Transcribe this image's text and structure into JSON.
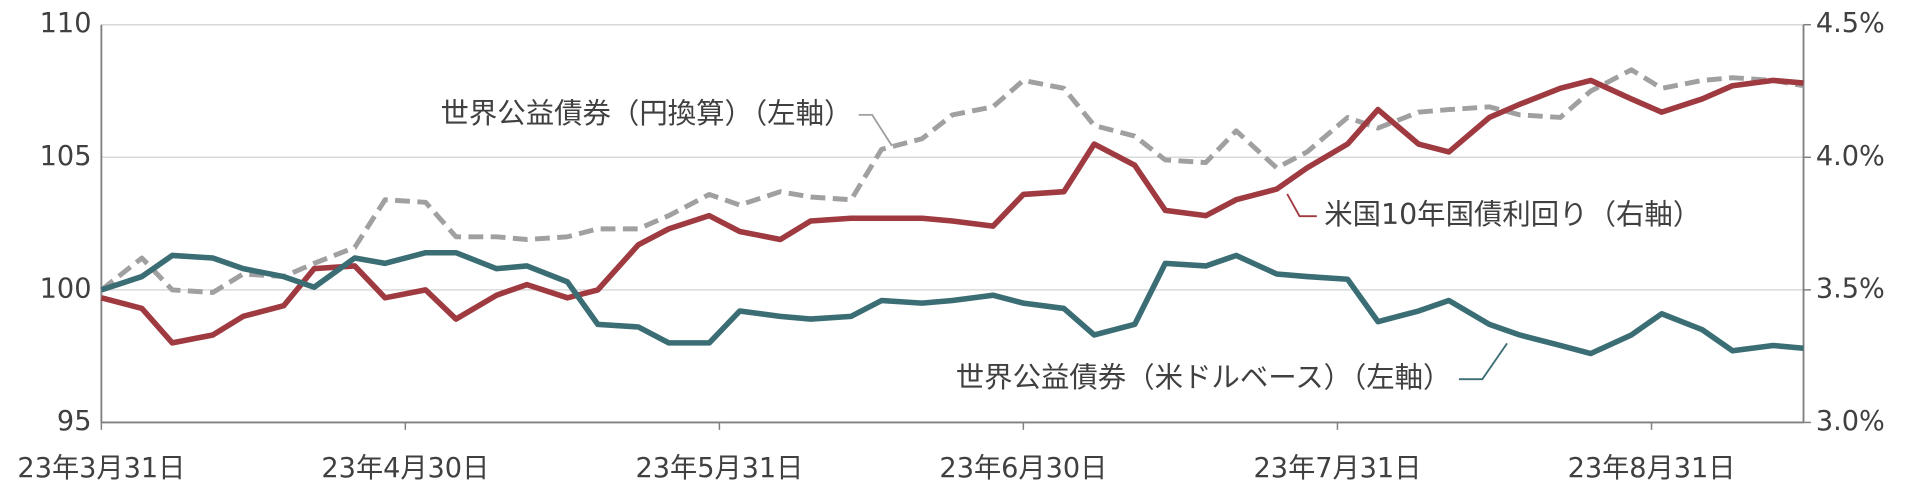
{
  "chart_data": {
    "type": "line",
    "x": [
      "2023-03-31",
      "2023-04-04",
      "2023-04-07",
      "2023-04-11",
      "2023-04-14",
      "2023-04-18",
      "2023-04-21",
      "2023-04-25",
      "2023-04-28",
      "2023-05-02",
      "2023-05-05",
      "2023-05-09",
      "2023-05-12",
      "2023-05-16",
      "2023-05-19",
      "2023-05-23",
      "2023-05-26",
      "2023-05-30",
      "2023-06-02",
      "2023-06-06",
      "2023-06-09",
      "2023-06-13",
      "2023-06-16",
      "2023-06-20",
      "2023-06-23",
      "2023-06-27",
      "2023-06-30",
      "2023-07-04",
      "2023-07-07",
      "2023-07-11",
      "2023-07-14",
      "2023-07-18",
      "2023-07-21",
      "2023-07-25",
      "2023-07-28",
      "2023-08-01",
      "2023-08-04",
      "2023-08-08",
      "2023-08-11",
      "2023-08-15",
      "2023-08-18",
      "2023-08-22",
      "2023-08-25",
      "2023-08-29",
      "2023-09-01",
      "2023-09-05",
      "2023-09-08",
      "2023-09-12",
      "2023-09-15"
    ],
    "xlim": [
      "2023-03-31",
      "2023-09-15"
    ],
    "xticks": [
      {
        "value": "2023-03-31",
        "label": "23年3月31日"
      },
      {
        "value": "2023-04-30",
        "label": "23年4月30日"
      },
      {
        "value": "2023-05-31",
        "label": "23年5月31日"
      },
      {
        "value": "2023-06-30",
        "label": "23年6月30日"
      },
      {
        "value": "2023-07-31",
        "label": "23年7月31日"
      },
      {
        "value": "2023-08-31",
        "label": "23年8月31日"
      }
    ],
    "ylim": [
      95,
      110
    ],
    "yticks": [
      95,
      100,
      105,
      110
    ],
    "y2lim": [
      3.0,
      4.5
    ],
    "y2ticks": [
      {
        "value": 3.0,
        "label": "3.0%"
      },
      {
        "value": 3.5,
        "label": "3.5%"
      },
      {
        "value": 4.0,
        "label": "4.0%"
      },
      {
        "value": 4.5,
        "label": "4.5%"
      }
    ],
    "grid": true,
    "series": [
      {
        "name": "世界公益債券（円換算）（左軸）",
        "color": "#a0a0a0",
        "dash": true,
        "values": [
          100.0,
          101.2,
          100.0,
          99.9,
          100.6,
          100.5,
          101.0,
          101.6,
          103.4,
          103.3,
          102.0,
          102.0,
          101.9,
          102.0,
          102.3,
          102.3,
          102.8,
          103.6,
          103.2,
          103.7,
          103.5,
          103.4,
          105.3,
          105.7,
          106.6,
          106.9,
          107.9,
          107.6,
          106.2,
          105.8,
          104.9,
          104.8,
          106.0,
          104.6,
          105.2,
          106.5,
          106.1,
          106.7,
          106.8,
          106.9,
          106.6,
          106.5,
          107.5,
          108.3,
          107.6,
          107.9,
          108.0,
          107.9,
          107.7
        ]
      },
      {
        "name": "米国10年国債利回り（右軸）",
        "color": "#9e3a40",
        "axis": "y2",
        "values": [
          3.47,
          3.43,
          3.3,
          3.33,
          3.4,
          3.44,
          3.58,
          3.59,
          3.47,
          3.5,
          3.39,
          3.48,
          3.52,
          3.47,
          3.5,
          3.67,
          3.73,
          3.78,
          3.72,
          3.69,
          3.76,
          3.77,
          3.77,
          3.77,
          3.76,
          3.74,
          3.86,
          3.87,
          4.05,
          3.97,
          3.8,
          3.78,
          3.84,
          3.88,
          3.96,
          4.05,
          4.18,
          4.05,
          4.02,
          4.15,
          4.2,
          4.26,
          4.29,
          4.22,
          4.17,
          4.22,
          4.27,
          4.29,
          4.28
        ]
      },
      {
        "name": "世界公益債券（米ドルベース）（左軸）",
        "color": "#3b6e74",
        "values": [
          100.0,
          100.5,
          101.3,
          101.2,
          100.8,
          100.5,
          100.1,
          101.2,
          101.0,
          101.4,
          101.4,
          100.8,
          100.9,
          100.3,
          98.7,
          98.6,
          98.0,
          98.0,
          99.2,
          99.0,
          98.9,
          99.0,
          99.6,
          99.5,
          99.6,
          99.8,
          99.5,
          99.3,
          98.3,
          98.7,
          101.0,
          100.9,
          101.3,
          100.6,
          100.5,
          100.4,
          98.8,
          99.2,
          99.6,
          98.7,
          98.3,
          97.9,
          97.6,
          98.3,
          99.1,
          98.5,
          97.7,
          97.9,
          97.8
        ]
      }
    ]
  }
}
